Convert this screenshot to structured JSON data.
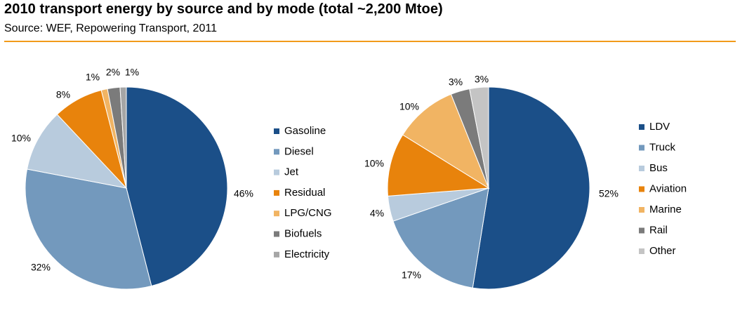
{
  "header": {
    "title": "2010 transport energy by source and by mode (total ~2,200 Mtoe)",
    "subtitle": "Source:  WEF, Repowering Transport, 2011"
  },
  "colors": {
    "rule": "#f29a1a"
  },
  "chart_data": [
    {
      "type": "pie",
      "categories": [
        "Gasoline",
        "Diesel",
        "Jet",
        "Residual",
        "LPG/CNG",
        "Biofuels",
        "Electricity"
      ],
      "values": [
        46,
        32,
        10,
        8,
        1,
        2,
        1
      ],
      "labels": [
        "46%",
        "32%",
        "10%",
        "8%",
        "1%",
        "2%",
        "1%"
      ],
      "colors": [
        "#1b4f88",
        "#7399bd",
        "#b8cbdd",
        "#e8830c",
        "#f1b463",
        "#7b7b7b",
        "#a6a6a6"
      ],
      "legend_position": "right"
    },
    {
      "type": "pie",
      "categories": [
        "LDV",
        "Truck",
        "Bus",
        "Aviation",
        "Marine",
        "Rail",
        "Other"
      ],
      "values": [
        52,
        17,
        4,
        10,
        10,
        3,
        3
      ],
      "labels": [
        "52%",
        "17%",
        "4%",
        "10%",
        "10%",
        "3%",
        "3%"
      ],
      "colors": [
        "#1b4f88",
        "#7399bd",
        "#b8cbdd",
        "#e8830c",
        "#f1b463",
        "#7b7b7b",
        "#c4c4c4"
      ],
      "legend_position": "right"
    }
  ]
}
